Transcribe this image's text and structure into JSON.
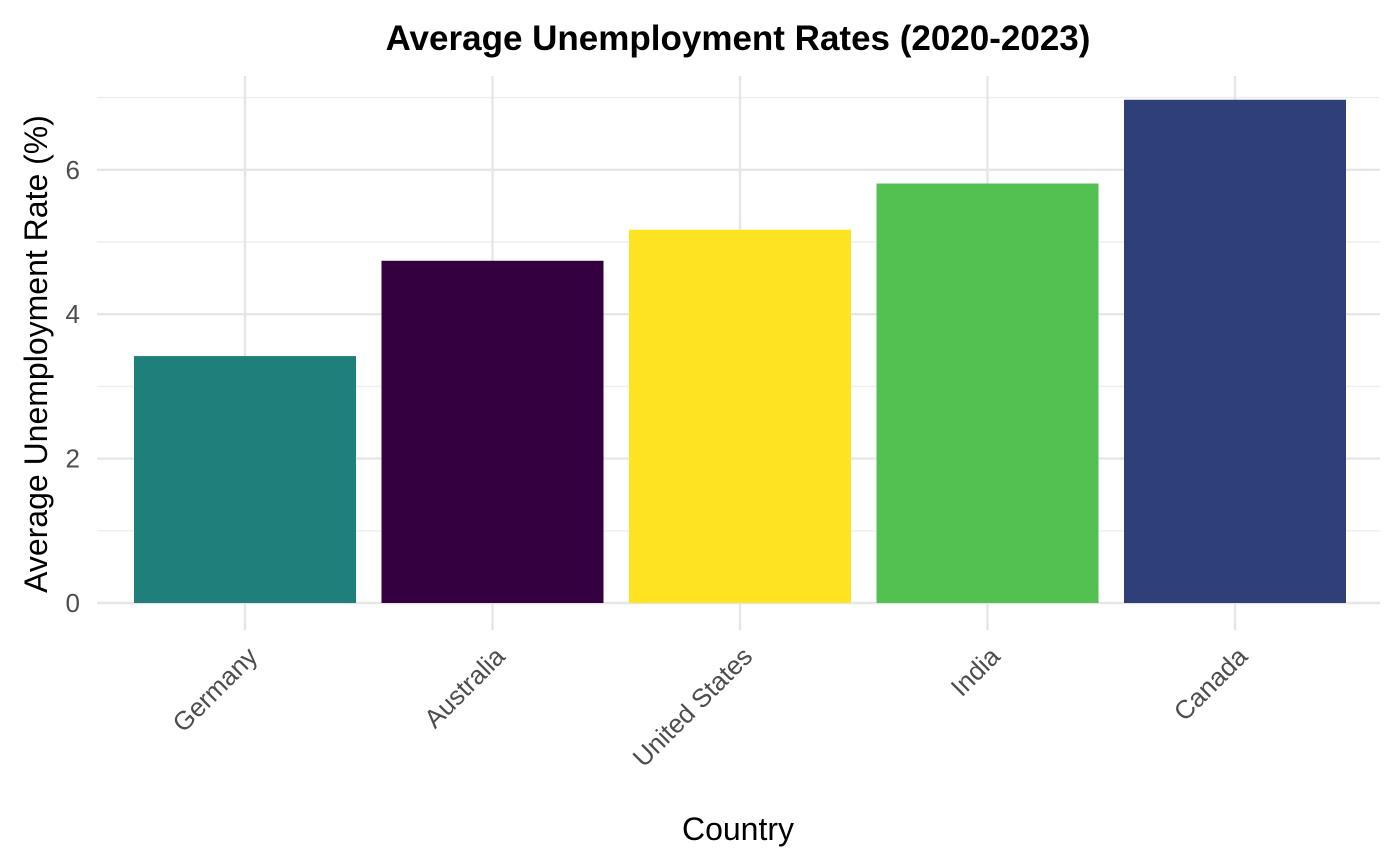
{
  "chart_data": {
    "type": "bar",
    "title": "Average Unemployment Rates (2020-2023)",
    "xlabel": "Country",
    "ylabel": "Average Unemployment Rate (%)",
    "categories": [
      "Germany",
      "Australia",
      "United States",
      "India",
      "Canada"
    ],
    "values": [
      3.42,
      4.74,
      5.17,
      5.81,
      6.97
    ],
    "colors": [
      "#1F7F7A",
      "#35003F",
      "#FDE321",
      "#52C151",
      "#2F3F77"
    ],
    "ylim": [
      0,
      7
    ],
    "yticks": [
      0,
      2,
      4,
      6
    ],
    "yticks_minor": [
      1,
      3,
      5,
      7
    ],
    "grid": true,
    "legend": "none"
  }
}
